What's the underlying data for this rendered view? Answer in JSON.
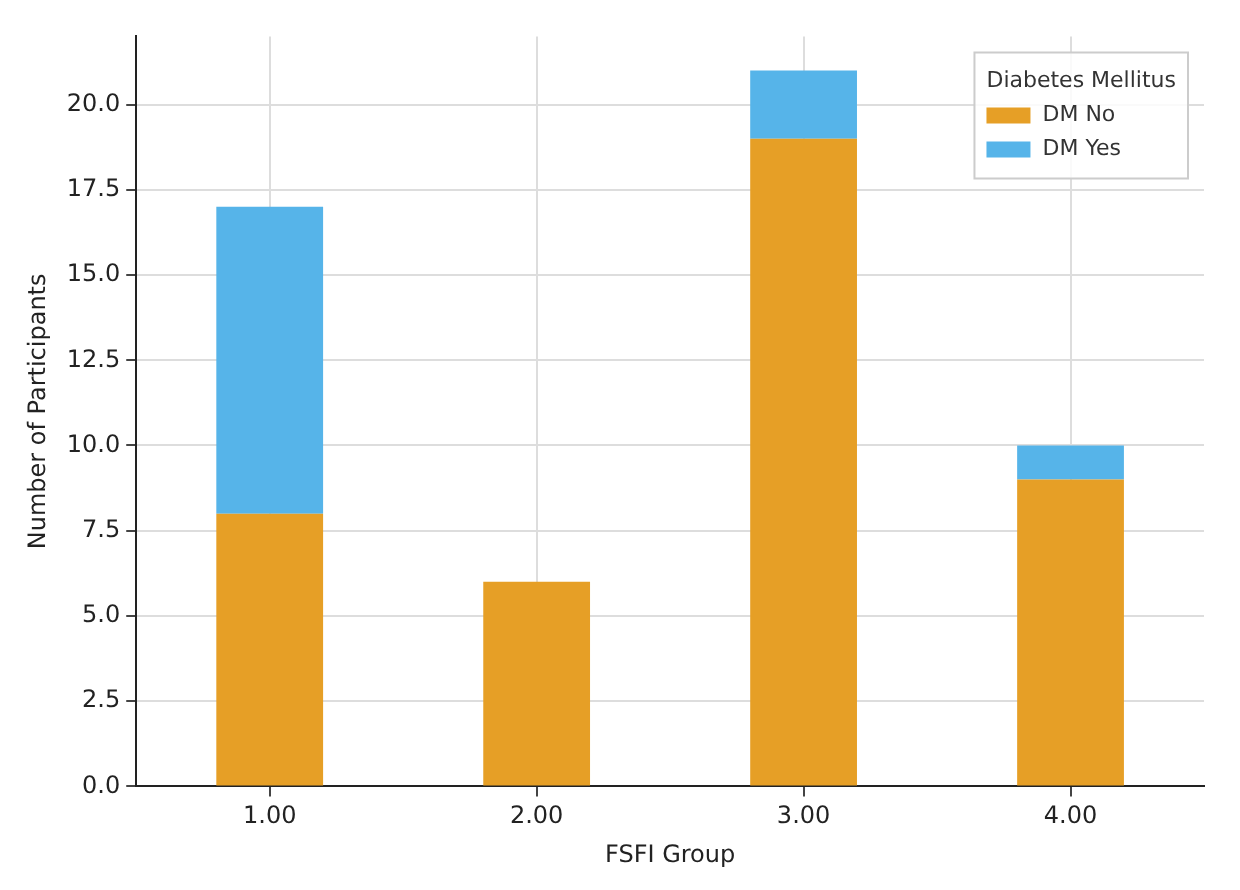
{
  "chart_data": {
    "type": "bar",
    "stacked": true,
    "xlabel": "FSFI Group",
    "ylabel": "Number of Participants",
    "legend_title": "Diabetes Mellitus",
    "legend": "top right",
    "grid": true,
    "categories": [
      "1.00",
      "2.00",
      "3.00",
      "4.00"
    ],
    "series": [
      {
        "name": "DM No",
        "color": "#e69f26",
        "values": [
          8,
          6,
          19,
          9
        ]
      },
      {
        "name": "DM Yes",
        "color": "#56b4e9",
        "values": [
          9,
          0,
          2,
          1
        ]
      }
    ],
    "ylim": [
      0,
      22
    ],
    "yticks": [
      {
        "value": 0,
        "label": "0.0"
      },
      {
        "value": 2.5,
        "label": "2.5"
      },
      {
        "value": 5,
        "label": "5.0"
      },
      {
        "value": 7.5,
        "label": "7.5"
      },
      {
        "value": 10,
        "label": "10.0"
      },
      {
        "value": 12.5,
        "label": "12.5"
      },
      {
        "value": 15,
        "label": "15.0"
      },
      {
        "value": 17.5,
        "label": "17.5"
      },
      {
        "value": 20,
        "label": "20.0"
      }
    ]
  }
}
